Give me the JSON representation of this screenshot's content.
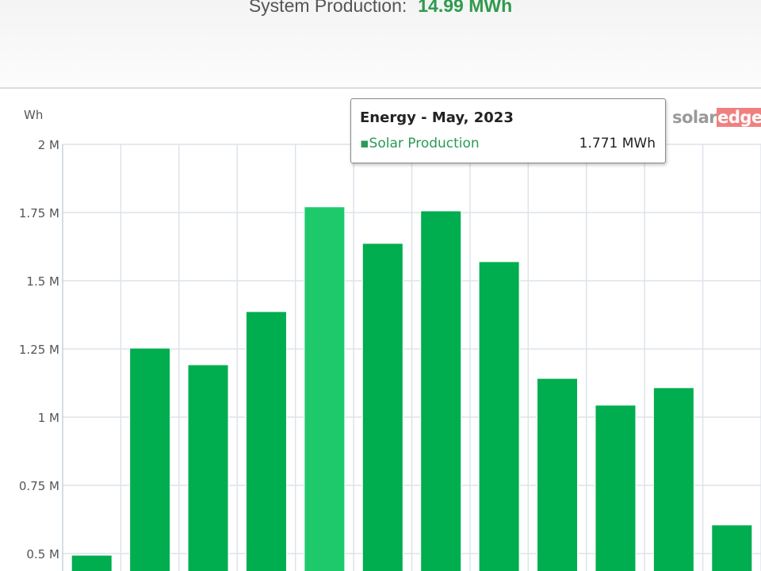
{
  "header": {
    "label": "System Production:",
    "value": "14.99 MWh"
  },
  "logo": {
    "part1": "solar",
    "part2": "edge"
  },
  "tooltip": {
    "title": "Energy - May, 2023",
    "series": "Solar Production",
    "value": "1.771 MWh",
    "marker": "▪"
  },
  "colors": {
    "bar": "#00ad4f",
    "bar_highlight": "#1ec96c",
    "grid": "#dde3ea"
  },
  "chart_data": {
    "type": "bar",
    "title": "",
    "ylabel": "Wh",
    "yticks": [
      "0.5 M",
      "0.75 M",
      "1 M",
      "1.25 M",
      "1.5 M",
      "1.75 M",
      "2 M"
    ],
    "ytick_values": [
      0.5,
      0.75,
      1,
      1.25,
      1.5,
      1.75,
      2
    ],
    "ylim_visible": [
      0.44,
      2
    ],
    "series": [
      {
        "name": "Solar Production",
        "unit": "MWh",
        "values": [
          0.494,
          1.253,
          1.192,
          1.387,
          1.771,
          1.637,
          1.756,
          1.57,
          1.142,
          1.044,
          1.108,
          0.605
        ]
      }
    ],
    "highlighted_index": 4,
    "grid": true
  }
}
